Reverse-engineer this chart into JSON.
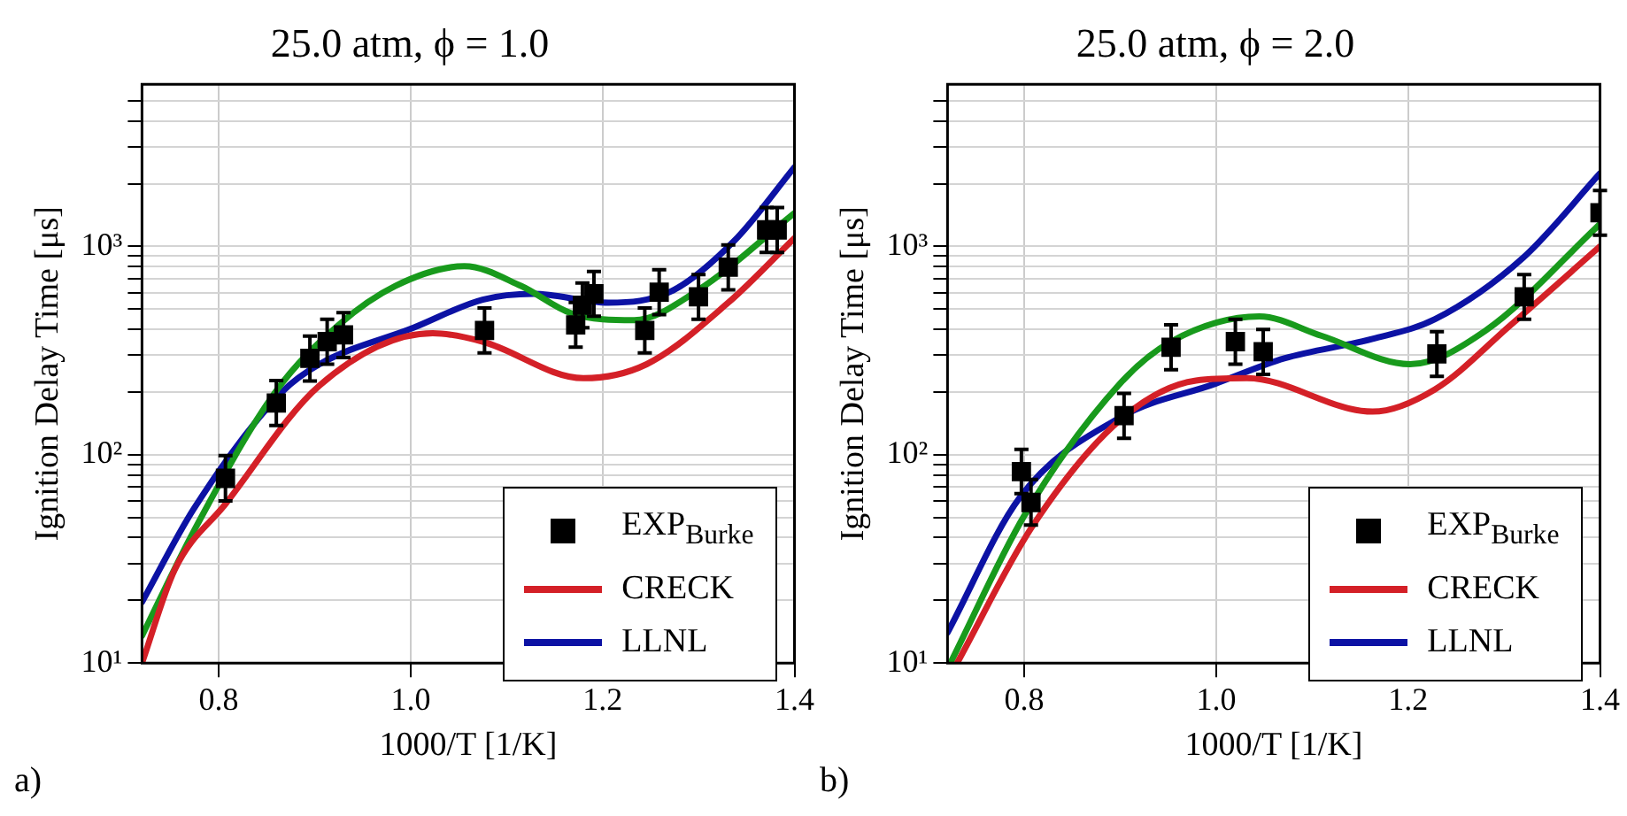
{
  "chart_data": [
    {
      "type": "line",
      "title": "25.0 atm, ϕ = 1.0",
      "xlabel": "1000/T [1/K]",
      "ylabel": "Ignition Delay Time [μs]",
      "annotations": [
        "a)"
      ],
      "log": "y",
      "grid": true,
      "legend": "bottom right",
      "xlim": [
        0.72,
        1.4
      ],
      "xticks": [
        0.8,
        {
          "value": 1,
          "label": "1.0"
        },
        1.2,
        1.4
      ],
      "ylim": [
        10,
        6000
      ],
      "yticks": [
        {
          "value": 10,
          "label": "10¹"
        },
        {
          "value": 20,
          "label": null
        },
        {
          "value": 30,
          "label": null
        },
        {
          "value": 40,
          "label": null
        },
        {
          "value": 50,
          "label": null
        },
        {
          "value": 60,
          "label": null
        },
        {
          "value": 70,
          "label": null
        },
        {
          "value": 80,
          "label": null
        },
        {
          "value": 90,
          "label": null
        },
        {
          "value": 100,
          "label": "10²"
        },
        {
          "value": 200,
          "label": null
        },
        {
          "value": 300,
          "label": null
        },
        {
          "value": 400,
          "label": null
        },
        {
          "value": 500,
          "label": null
        },
        {
          "value": 600,
          "label": null
        },
        {
          "value": 700,
          "label": null
        },
        {
          "value": 800,
          "label": null
        },
        {
          "value": 900,
          "label": null
        },
        {
          "value": 1000,
          "label": "10³"
        },
        {
          "value": 2000,
          "label": null
        },
        {
          "value": 3000,
          "label": null
        },
        {
          "value": 4000,
          "label": null
        },
        {
          "value": 5000,
          "label": null
        }
      ],
      "series": [
        {
          "name": "EXP$_{Burke}$",
          "type": "scatter",
          "marker": "square",
          "color": "#000000",
          "x": [
            0.807,
            0.86,
            0.895,
            0.913,
            0.93,
            1.077,
            1.172,
            1.179,
            1.191,
            1.244,
            1.259,
            1.3,
            1.331,
            1.371,
            1.382
          ],
          "values": [
            77,
            177,
            290,
            349,
            376,
            395,
            420,
            522,
            592,
            395,
            603,
            573,
            794,
            1200,
            1200
          ],
          "errors": [
            [
              60,
              99
            ],
            [
              138,
              227
            ],
            [
              226,
              371
            ],
            [
              272,
              447
            ],
            [
              293,
              481
            ],
            [
              308,
              506
            ],
            [
              328,
              538
            ],
            [
              407,
              668
            ],
            [
              462,
              758
            ],
            [
              308,
              506
            ],
            [
              470,
              772
            ],
            [
              447,
              733
            ],
            [
              619,
              1016
            ],
            [
              936,
              1536
            ],
            [
              936,
              1536
            ]
          ]
        },
        {
          "name": "CRECK",
          "type": "line",
          "marker": "none",
          "line_style": "solid",
          "color": "#d42027",
          "x": [
            0.72,
            0.754,
            0.807,
            0.905,
            1.023,
            1.075,
            1.18,
            1.246,
            1.331,
            1.4
          ],
          "values": [
            10,
            28,
            58,
            215,
            383,
            349,
            233,
            272,
            537,
            1096
          ]
        },
        {
          "type": "line",
          "marker": "none",
          "line_style": "solid",
          "color": "#189a1c",
          "x": [
            0.72,
            0.774,
            0.859,
            0.925,
            0.984,
            1.056,
            1.115,
            1.167,
            1.233,
            1.298,
            1.4
          ],
          "values": [
            13.5,
            43,
            200,
            420,
            646,
            803,
            646,
            478,
            442,
            610,
            1445
          ]
        },
        {
          "name": "LLNL",
          "type": "line",
          "marker": "none",
          "line_style": "solid",
          "color": "#0c12a4",
          "x": [
            0.72,
            0.774,
            0.866,
            0.905,
            1.003,
            1.075,
            1.128,
            1.206,
            1.272,
            1.338,
            1.4
          ],
          "values": [
            19.6,
            55,
            200,
            272,
            407,
            555,
            592,
            537,
            610,
            1072,
            2400
          ]
        }
      ]
    },
    {
      "type": "line",
      "title": "25.0 atm, ϕ = 2.0",
      "xlabel": "1000/T [1/K]",
      "ylabel": "Ignition Delay Time [μs]",
      "annotations": [
        "b)"
      ],
      "log": "y",
      "grid": true,
      "legend": "bottom right",
      "xlim": [
        0.72,
        1.4
      ],
      "xticks": [
        0.8,
        {
          "value": 1,
          "label": "1.0"
        },
        1.2,
        1.4
      ],
      "ylim": [
        10,
        6000
      ],
      "yticks": [
        {
          "value": 10,
          "label": "10¹"
        },
        {
          "value": 20,
          "label": null
        },
        {
          "value": 30,
          "label": null
        },
        {
          "value": 40,
          "label": null
        },
        {
          "value": 50,
          "label": null
        },
        {
          "value": 60,
          "label": null
        },
        {
          "value": 70,
          "label": null
        },
        {
          "value": 80,
          "label": null
        },
        {
          "value": 90,
          "label": null
        },
        {
          "value": 100,
          "label": "10²"
        },
        {
          "value": 200,
          "label": null
        },
        {
          "value": 300,
          "label": null
        },
        {
          "value": 400,
          "label": null
        },
        {
          "value": 500,
          "label": null
        },
        {
          "value": 600,
          "label": null
        },
        {
          "value": 700,
          "label": null
        },
        {
          "value": 800,
          "label": null
        },
        {
          "value": 900,
          "label": null
        },
        {
          "value": 1000,
          "label": "10³"
        },
        {
          "value": 2000,
          "label": null
        },
        {
          "value": 3000,
          "label": null
        },
        {
          "value": 4000,
          "label": null
        },
        {
          "value": 5000,
          "label": null
        }
      ],
      "series": [
        {
          "name": "EXP$_{Burke}$",
          "type": "scatter",
          "marker": "square",
          "color": "#000000",
          "x": [
            0.797,
            0.807,
            0.904,
            0.953,
            1.02,
            1.049,
            1.23,
            1.321,
            1.4
          ],
          "values": [
            83,
            59,
            154,
            328,
            349,
            312,
            305,
            573,
            1450
          ],
          "errors": [
            [
              65,
              106
            ],
            [
              46,
              76
            ],
            [
              120,
              197
            ],
            [
              256,
              420
            ],
            [
              272,
              447
            ],
            [
              243,
              399
            ],
            [
              238,
              390
            ],
            [
              447,
              733
            ],
            [
              1131,
              1856
            ]
          ]
        },
        {
          "name": "CRECK",
          "type": "line",
          "marker": "none",
          "line_style": "solid",
          "color": "#d42027",
          "x": [
            0.73,
            0.808,
            0.9,
            0.979,
            1.032,
            1.163,
            1.228,
            1.307,
            1.4
          ],
          "values": [
            10,
            45,
            147,
            227,
            233,
            161,
            206,
            420,
            1000
          ]
        },
        {
          "type": "line",
          "marker": "none",
          "line_style": "solid",
          "color": "#189a1c",
          "x": [
            0.723,
            0.8,
            0.9,
            0.953,
            1.045,
            1.11,
            1.202,
            1.281,
            1.4
          ],
          "values": [
            10,
            51,
            220,
            349,
            461,
            372,
            272,
            395,
            1280
          ]
        },
        {
          "name": "LLNL",
          "type": "line",
          "marker": "none",
          "line_style": "solid",
          "color": "#0c12a4",
          "x": [
            0.72,
            0.795,
            0.9,
            0.999,
            1.071,
            1.163,
            1.228,
            1.32,
            1.4
          ],
          "values": [
            14,
            62,
            151,
            219,
            290,
            360,
            447,
            883,
            2240
          ]
        }
      ]
    }
  ]
}
